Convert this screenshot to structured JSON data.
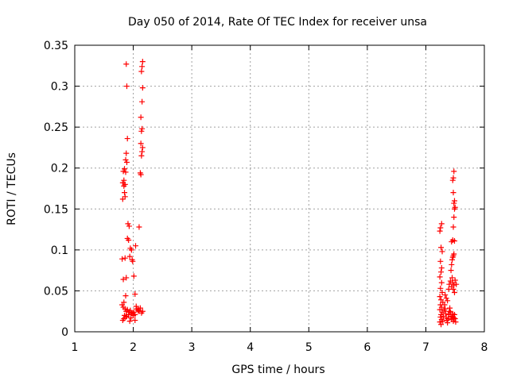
{
  "chart_data": {
    "type": "scatter",
    "title": "Day 050 of 2014, Rate Of TEC Index for receiver unsa",
    "xlabel": "GPS time / hours",
    "ylabel": "ROTI / TECUs",
    "xlim": [
      1,
      8
    ],
    "ylim": [
      0,
      0.35
    ],
    "x_ticks": [
      1,
      2,
      3,
      4,
      5,
      6,
      7,
      8
    ],
    "x_tick_labels": [
      "1",
      "2",
      "3",
      "4",
      "5",
      "6",
      "7",
      "8"
    ],
    "y_ticks": [
      0,
      0.05,
      0.1,
      0.15,
      0.2,
      0.25,
      0.3,
      0.35
    ],
    "y_tick_labels": [
      "0",
      "0.05",
      "0.1",
      "0.15",
      "0.2",
      "0.25",
      "0.3",
      "0.35"
    ],
    "grid": true,
    "marker": "+",
    "marker_color": "#ff0000",
    "series": [
      {
        "name": "ROTI",
        "points": [
          [
            1.88,
            0.327
          ],
          [
            1.89,
            0.3
          ],
          [
            1.9,
            0.236
          ],
          [
            1.88,
            0.218
          ],
          [
            1.87,
            0.21
          ],
          [
            1.89,
            0.207
          ],
          [
            1.85,
            0.199
          ],
          [
            1.87,
            0.195
          ],
          [
            1.83,
            0.196
          ],
          [
            1.84,
            0.185
          ],
          [
            1.82,
            0.182
          ],
          [
            1.86,
            0.18
          ],
          [
            1.84,
            0.178
          ],
          [
            1.85,
            0.17
          ],
          [
            1.82,
            0.162
          ],
          [
            1.86,
            0.165
          ],
          [
            1.91,
            0.132
          ],
          [
            1.93,
            0.129
          ],
          [
            1.9,
            0.114
          ],
          [
            1.92,
            0.112
          ],
          [
            1.95,
            0.102
          ],
          [
            1.97,
            0.1
          ],
          [
            1.94,
            0.092
          ],
          [
            1.98,
            0.088
          ],
          [
            1.81,
            0.089
          ],
          [
            1.86,
            0.09
          ],
          [
            1.99,
            0.086
          ],
          [
            2.04,
            0.105
          ],
          [
            1.83,
            0.064
          ],
          [
            1.88,
            0.066
          ],
          [
            2.01,
            0.068
          ],
          [
            1.87,
            0.044
          ],
          [
            2.03,
            0.046
          ],
          [
            1.84,
            0.036
          ],
          [
            1.81,
            0.033
          ],
          [
            1.83,
            0.03
          ],
          [
            1.86,
            0.028
          ],
          [
            1.88,
            0.025
          ],
          [
            1.9,
            0.027
          ],
          [
            1.93,
            0.024
          ],
          [
            1.95,
            0.026
          ],
          [
            1.97,
            0.023
          ],
          [
            1.99,
            0.022
          ],
          [
            2.01,
            0.024
          ],
          [
            2.03,
            0.021
          ],
          [
            1.85,
            0.02
          ],
          [
            1.87,
            0.018
          ],
          [
            1.84,
            0.016
          ],
          [
            1.82,
            0.014
          ],
          [
            1.89,
            0.019
          ],
          [
            1.92,
            0.021
          ],
          [
            1.96,
            0.017
          ],
          [
            2.0,
            0.02
          ],
          [
            2.03,
            0.014
          ],
          [
            1.94,
            0.013
          ],
          [
            2.06,
            0.028
          ],
          [
            2.08,
            0.026
          ],
          [
            2.1,
            0.025
          ],
          [
            2.12,
            0.029
          ],
          [
            2.14,
            0.023
          ],
          [
            2.16,
            0.025
          ],
          [
            2.05,
            0.031
          ],
          [
            2.09,
            0.027
          ],
          [
            2.16,
            0.33
          ],
          [
            2.15,
            0.324
          ],
          [
            2.14,
            0.318
          ],
          [
            2.16,
            0.298
          ],
          [
            2.15,
            0.281
          ],
          [
            2.13,
            0.262
          ],
          [
            2.15,
            0.248
          ],
          [
            2.14,
            0.245
          ],
          [
            2.13,
            0.23
          ],
          [
            2.16,
            0.225
          ],
          [
            2.15,
            0.22
          ],
          [
            2.14,
            0.215
          ],
          [
            2.12,
            0.194
          ],
          [
            2.13,
            0.192
          ],
          [
            2.1,
            0.128
          ],
          [
            7.27,
            0.132
          ],
          [
            7.25,
            0.127
          ],
          [
            7.24,
            0.123
          ],
          [
            7.26,
            0.103
          ],
          [
            7.28,
            0.098
          ],
          [
            7.25,
            0.086
          ],
          [
            7.27,
            0.078
          ],
          [
            7.26,
            0.073
          ],
          [
            7.24,
            0.067
          ],
          [
            7.27,
            0.06
          ],
          [
            7.25,
            0.053
          ],
          [
            7.28,
            0.048
          ],
          [
            7.24,
            0.043
          ],
          [
            7.26,
            0.039
          ],
          [
            7.29,
            0.036
          ],
          [
            7.25,
            0.033
          ],
          [
            7.27,
            0.03
          ],
          [
            7.24,
            0.027
          ],
          [
            7.28,
            0.024
          ],
          [
            7.26,
            0.021
          ],
          [
            7.25,
            0.018
          ],
          [
            7.27,
            0.015
          ],
          [
            7.24,
            0.012
          ],
          [
            7.26,
            0.009
          ],
          [
            7.29,
            0.013
          ],
          [
            7.3,
            0.019
          ],
          [
            7.31,
            0.026
          ],
          [
            7.32,
            0.033
          ],
          [
            7.33,
            0.028
          ],
          [
            7.34,
            0.022
          ],
          [
            7.35,
            0.017
          ],
          [
            7.36,
            0.014
          ],
          [
            7.37,
            0.011
          ],
          [
            7.38,
            0.016
          ],
          [
            7.39,
            0.021
          ],
          [
            7.4,
            0.025
          ],
          [
            7.41,
            0.029
          ],
          [
            7.42,
            0.024
          ],
          [
            7.43,
            0.019
          ],
          [
            7.44,
            0.015
          ],
          [
            7.45,
            0.018
          ],
          [
            7.46,
            0.022
          ],
          [
            7.47,
            0.013
          ],
          [
            7.48,
            0.017
          ],
          [
            7.49,
            0.021
          ],
          [
            7.5,
            0.016
          ],
          [
            7.51,
            0.012
          ],
          [
            7.33,
            0.045
          ],
          [
            7.35,
            0.041
          ],
          [
            7.37,
            0.038
          ],
          [
            7.39,
            0.052
          ],
          [
            7.4,
            0.058
          ],
          [
            7.42,
            0.062
          ],
          [
            7.44,
            0.055
          ],
          [
            7.46,
            0.06
          ],
          [
            7.48,
            0.057
          ],
          [
            7.5,
            0.063
          ],
          [
            7.52,
            0.058
          ],
          [
            7.45,
            0.066
          ],
          [
            7.47,
            0.052
          ],
          [
            7.49,
            0.048
          ],
          [
            7.43,
            0.075
          ],
          [
            7.44,
            0.082
          ],
          [
            7.45,
            0.088
          ],
          [
            7.46,
            0.091
          ],
          [
            7.47,
            0.093
          ],
          [
            7.48,
            0.095
          ],
          [
            7.44,
            0.11
          ],
          [
            7.46,
            0.112
          ],
          [
            7.49,
            0.111
          ],
          [
            7.47,
            0.128
          ],
          [
            7.48,
            0.14
          ],
          [
            7.49,
            0.15
          ],
          [
            7.5,
            0.152
          ],
          [
            7.48,
            0.157
          ],
          [
            7.49,
            0.16
          ],
          [
            7.47,
            0.17
          ],
          [
            7.46,
            0.185
          ],
          [
            7.47,
            0.188
          ],
          [
            7.48,
            0.196
          ]
        ]
      }
    ]
  }
}
